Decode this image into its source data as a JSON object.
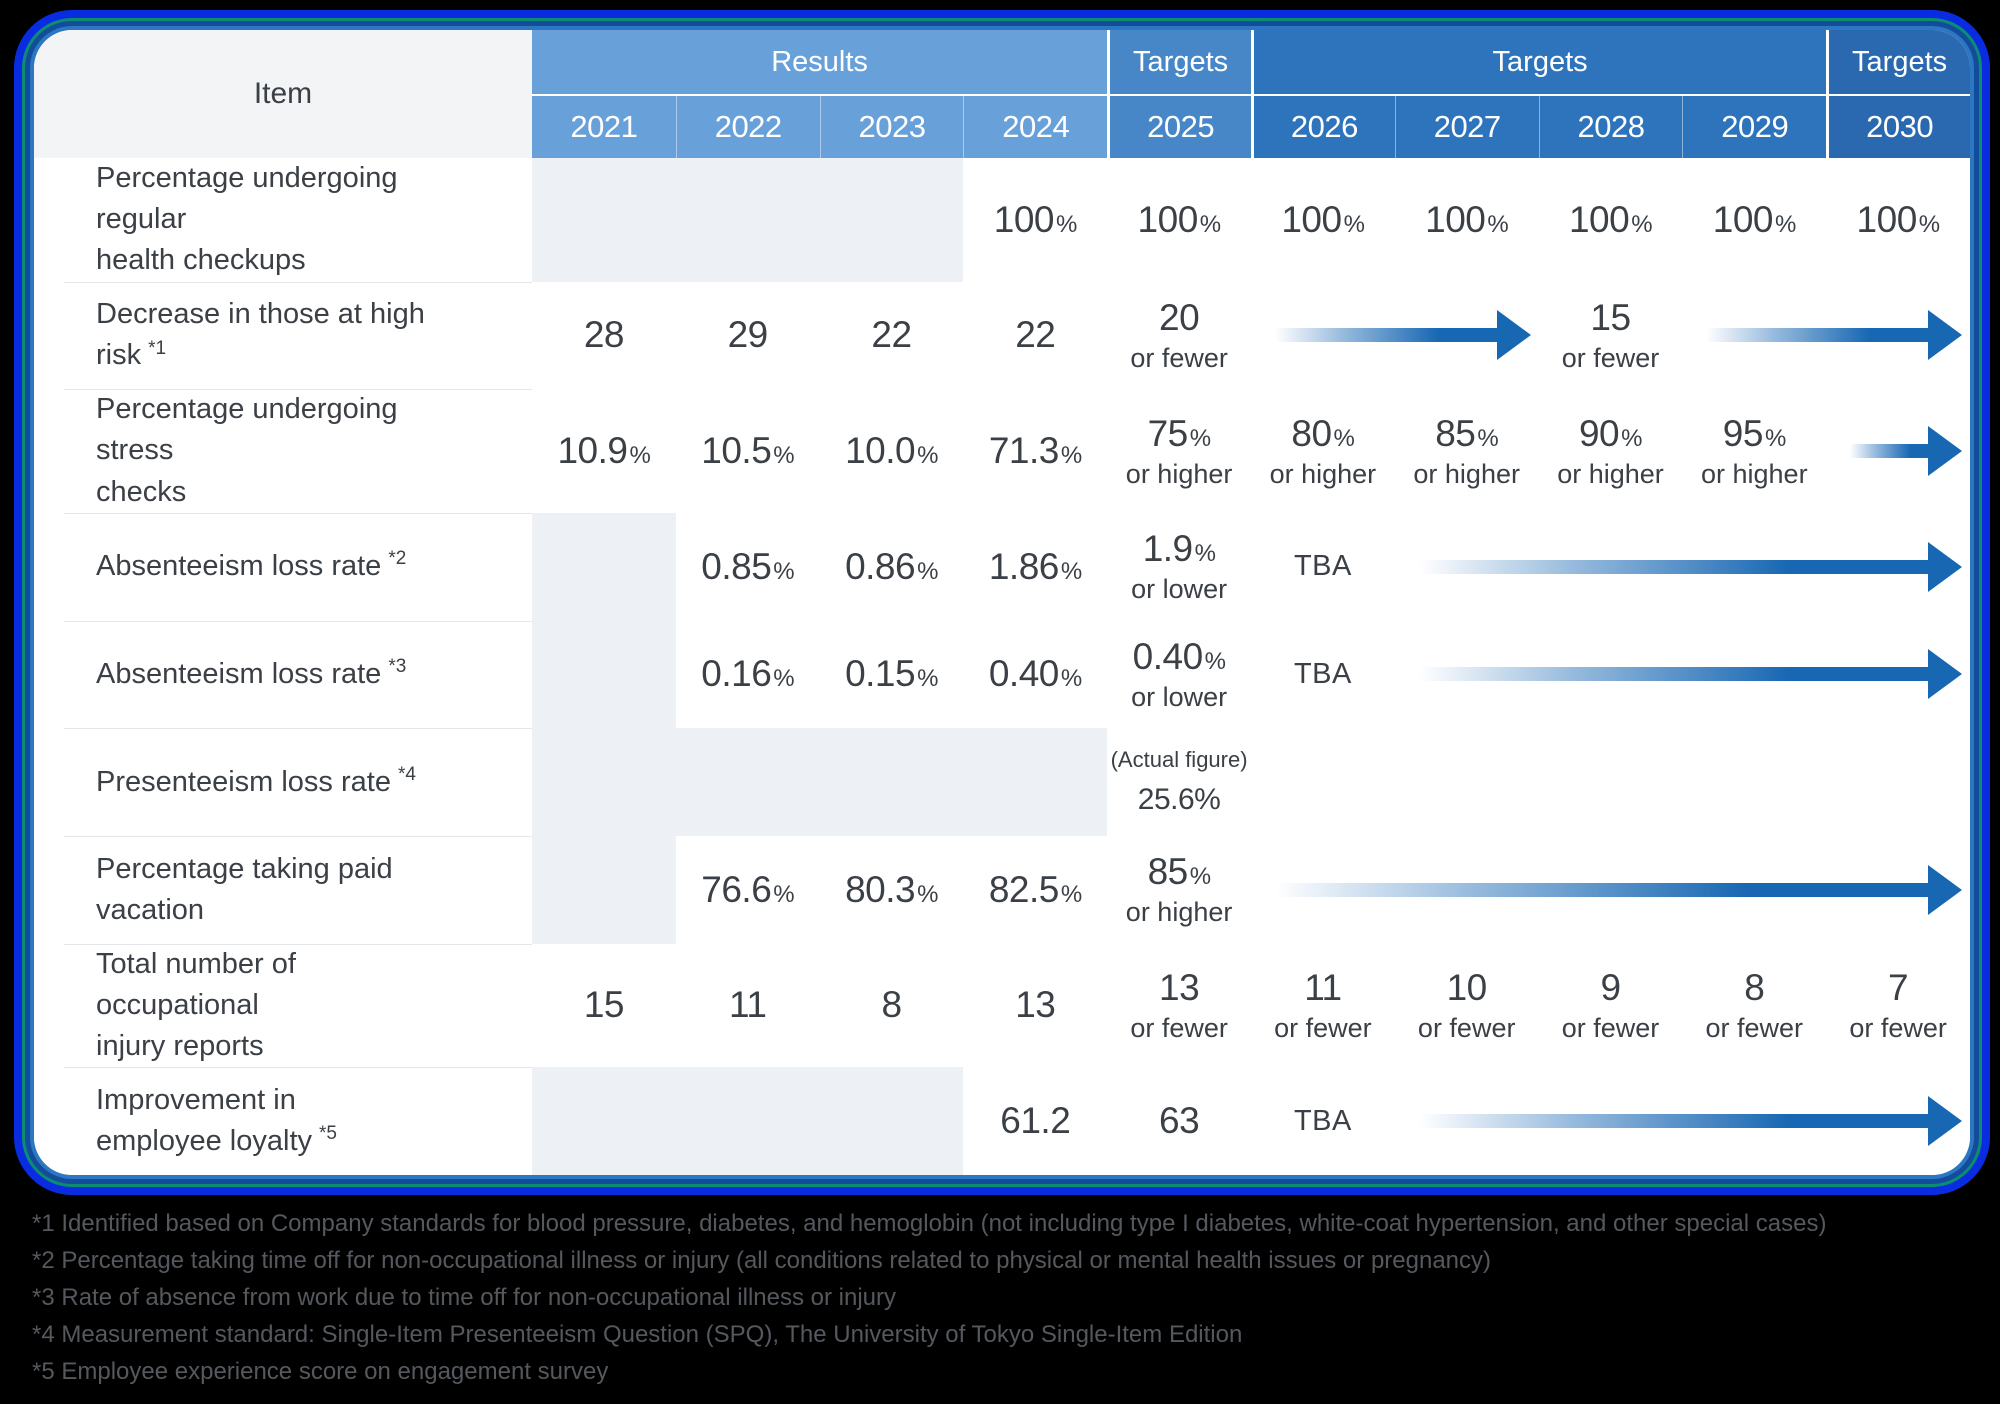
{
  "table": {
    "item_header": "Item",
    "groups": [
      {
        "label": "Results",
        "span": 4,
        "key": "results"
      },
      {
        "label": "Targets",
        "span": 1,
        "key": "t2025"
      },
      {
        "label": "Targets",
        "span": 4,
        "key": "t26_29"
      },
      {
        "label": "Targets",
        "span": 1,
        "key": "t2030"
      }
    ],
    "years": [
      {
        "label": "2021",
        "key": "results"
      },
      {
        "label": "2022",
        "key": "results"
      },
      {
        "label": "2023",
        "key": "results"
      },
      {
        "label": "2024",
        "key": "results"
      },
      {
        "label": "2025",
        "key": "t2025"
      },
      {
        "label": "2026",
        "key": "t26_29"
      },
      {
        "label": "2027",
        "key": "t26_29"
      },
      {
        "label": "2028",
        "key": "t26_29"
      },
      {
        "label": "2029",
        "key": "t26_29"
      },
      {
        "label": "2030",
        "key": "t2030"
      }
    ],
    "rows": [
      {
        "label": "Percentage undergoing regular\nhealth checkups",
        "sup": "",
        "cells": [
          {
            "t": "blank",
            "span": 3
          },
          {
            "t": "val",
            "main": "100",
            "pct": true
          },
          {
            "t": "val",
            "main": "100",
            "pct": true
          },
          {
            "t": "val",
            "main": "100",
            "pct": true
          },
          {
            "t": "val",
            "main": "100",
            "pct": true
          },
          {
            "t": "val",
            "main": "100",
            "pct": true
          },
          {
            "t": "val",
            "main": "100",
            "pct": true
          },
          {
            "t": "val",
            "main": "100",
            "pct": true
          }
        ]
      },
      {
        "label": "Decrease in those at high risk",
        "sup": "*1",
        "cells": [
          {
            "t": "val",
            "main": "28"
          },
          {
            "t": "val",
            "main": "29"
          },
          {
            "t": "val",
            "main": "22"
          },
          {
            "t": "val",
            "main": "22"
          },
          {
            "t": "val",
            "main": "20",
            "sub": "or fewer"
          },
          {
            "t": "arrow",
            "span": 2
          },
          {
            "t": "val",
            "main": "15",
            "sub": "or fewer"
          },
          {
            "t": "arrow",
            "span": 2
          }
        ]
      },
      {
        "label": "Percentage undergoing stress\nchecks",
        "sup": "",
        "cells": [
          {
            "t": "val",
            "main": "10.9",
            "pct": true
          },
          {
            "t": "val",
            "main": "10.5",
            "pct": true
          },
          {
            "t": "val",
            "main": "10.0",
            "pct": true
          },
          {
            "t": "val",
            "main": "71.3",
            "pct": true
          },
          {
            "t": "val",
            "main": "75",
            "pct": true,
            "sub": "or higher"
          },
          {
            "t": "val",
            "main": "80",
            "pct": true,
            "sub": "or higher"
          },
          {
            "t": "val",
            "main": "85",
            "pct": true,
            "sub": "or higher"
          },
          {
            "t": "val",
            "main": "90",
            "pct": true,
            "sub": "or higher"
          },
          {
            "t": "val",
            "main": "95",
            "pct": true,
            "sub": "or higher"
          },
          {
            "t": "arrow",
            "span": 1
          }
        ]
      },
      {
        "label": "Absenteeism loss rate",
        "sup": "*2",
        "cells": [
          {
            "t": "blank",
            "span": 1
          },
          {
            "t": "val",
            "main": "0.85",
            "pct": true
          },
          {
            "t": "val",
            "main": "0.86",
            "pct": true
          },
          {
            "t": "val",
            "main": "1.86",
            "pct": true
          },
          {
            "t": "val",
            "main": "1.9",
            "pct": true,
            "sub": "or lower"
          },
          {
            "t": "val",
            "main": "TBA",
            "tba": true
          },
          {
            "t": "arrow",
            "span": 4
          }
        ]
      },
      {
        "label": "Absenteeism loss rate",
        "sup": "*3",
        "cells": [
          {
            "t": "blank",
            "span": 1
          },
          {
            "t": "val",
            "main": "0.16",
            "pct": true
          },
          {
            "t": "val",
            "main": "0.15",
            "pct": true
          },
          {
            "t": "val",
            "main": "0.40",
            "pct": true
          },
          {
            "t": "val",
            "main": "0.40",
            "pct": true,
            "sub": "or lower"
          },
          {
            "t": "val",
            "main": "TBA",
            "tba": true
          },
          {
            "t": "arrow",
            "span": 4
          }
        ]
      },
      {
        "label": "Presenteeism loss rate",
        "sup": "*4",
        "cells": [
          {
            "t": "blank",
            "span": 4
          },
          {
            "t": "note",
            "top": "(Actual figure)",
            "main": "25.6%"
          },
          {
            "t": "empty",
            "span": 5
          }
        ]
      },
      {
        "label": "Percentage taking paid vacation",
        "sup": "",
        "cells": [
          {
            "t": "blank",
            "span": 1
          },
          {
            "t": "val",
            "main": "76.6",
            "pct": true
          },
          {
            "t": "val",
            "main": "80.3",
            "pct": true
          },
          {
            "t": "val",
            "main": "82.5",
            "pct": true
          },
          {
            "t": "val",
            "main": "85",
            "pct": true,
            "sub": "or higher"
          },
          {
            "t": "arrow",
            "span": 5
          }
        ]
      },
      {
        "label": "Total number of occupational\ninjury reports",
        "sup": "",
        "cells": [
          {
            "t": "val",
            "main": "15"
          },
          {
            "t": "val",
            "main": "11"
          },
          {
            "t": "val",
            "main": "8"
          },
          {
            "t": "val",
            "main": "13"
          },
          {
            "t": "val",
            "main": "13",
            "sub": "or fewer"
          },
          {
            "t": "val",
            "main": "11",
            "sub": "or fewer"
          },
          {
            "t": "val",
            "main": "10",
            "sub": "or fewer"
          },
          {
            "t": "val",
            "main": "9",
            "sub": "or fewer"
          },
          {
            "t": "val",
            "main": "8",
            "sub": "or fewer"
          },
          {
            "t": "val",
            "main": "7",
            "sub": "or fewer"
          }
        ]
      },
      {
        "label": "Improvement in\nemployee loyalty",
        "sup": "*5",
        "cells": [
          {
            "t": "blank",
            "span": 3
          },
          {
            "t": "val",
            "main": "61.2"
          },
          {
            "t": "val",
            "main": "63"
          },
          {
            "t": "val",
            "main": "TBA",
            "tba": true
          },
          {
            "t": "arrow",
            "span": 4
          }
        ]
      }
    ]
  },
  "footnotes": [
    "*1 Identified based on Company standards for blood pressure, diabetes, and hemoglobin (not including type I diabetes, white-coat hypertension, and other special cases)",
    "*2 Percentage taking time off for non-occupational illness or injury (all conditions related to physical or mental health issues or pregnancy)",
    "*3 Rate of absence from work due to time off for non-occupational illness or injury",
    "*4 Measurement standard: Single-Item Presenteeism Question (SPQ), The University of Tokyo Single-Item Edition",
    "*5 Employee experience score on engagement survey"
  ],
  "colors": {
    "page_bg": "#000000",
    "card_bg": "#ffffff",
    "item_header_bg": "#f3f4f6",
    "results_header": "#68a1da",
    "targets_2025_header": "#4787c7",
    "targets_2026_2029_header": "#2e74bc",
    "targets_2030_header": "#2a68af",
    "blank_cell": "#edf1f6",
    "text": "#3b4046",
    "arrow": "#1767b3",
    "footnote_text": "#55595e",
    "glow_outer": "#0a2ce0",
    "glow_teal": "#0c8d72"
  },
  "chart_data": {
    "type": "table",
    "title": "",
    "columns": [
      "Item",
      "2021",
      "2022",
      "2023",
      "2024",
      "2025",
      "2026",
      "2027",
      "2028",
      "2029",
      "2030"
    ],
    "column_groups": [
      "",
      "Results",
      "Results",
      "Results",
      "Results",
      "Targets",
      "Targets",
      "Targets",
      "Targets",
      "Targets",
      "Targets"
    ],
    "rows": [
      [
        "Percentage undergoing regular health checkups",
        "",
        "",
        "",
        "100%",
        "100%",
        "100%",
        "100%",
        "100%",
        "100%",
        "100%"
      ],
      [
        "Decrease in those at high risk *1",
        "28",
        "29",
        "22",
        "22",
        "20 or fewer",
        "→",
        "→",
        "15 or fewer",
        "→",
        "→"
      ],
      [
        "Percentage undergoing stress checks",
        "10.9%",
        "10.5%",
        "10.0%",
        "71.3%",
        "75% or higher",
        "80% or higher",
        "85% or higher",
        "90% or higher",
        "95% or higher",
        "→"
      ],
      [
        "Absenteeism loss rate *2",
        "",
        "0.85%",
        "0.86%",
        "1.86%",
        "1.9% or lower",
        "TBA",
        "→",
        "→",
        "→",
        "→"
      ],
      [
        "Absenteeism loss rate *3",
        "",
        "0.16%",
        "0.15%",
        "0.40%",
        "0.40% or lower",
        "TBA",
        "→",
        "→",
        "→",
        "→"
      ],
      [
        "Presenteeism loss rate *4",
        "",
        "",
        "",
        "",
        "(Actual figure) 25.6%",
        "",
        "",
        "",
        "",
        ""
      ],
      [
        "Percentage taking paid vacation",
        "",
        "76.6%",
        "80.3%",
        "82.5%",
        "85% or higher",
        "→",
        "→",
        "→",
        "→",
        "→"
      ],
      [
        "Total number of occupational injury reports",
        "15",
        "11",
        "8",
        "13",
        "13 or fewer",
        "11 or fewer",
        "10 or fewer",
        "9 or fewer",
        "8 or fewer",
        "7 or fewer"
      ],
      [
        "Improvement in employee loyalty *5",
        "",
        "",
        "",
        "61.2",
        "63",
        "TBA",
        "→",
        "→",
        "→",
        "→"
      ]
    ]
  }
}
